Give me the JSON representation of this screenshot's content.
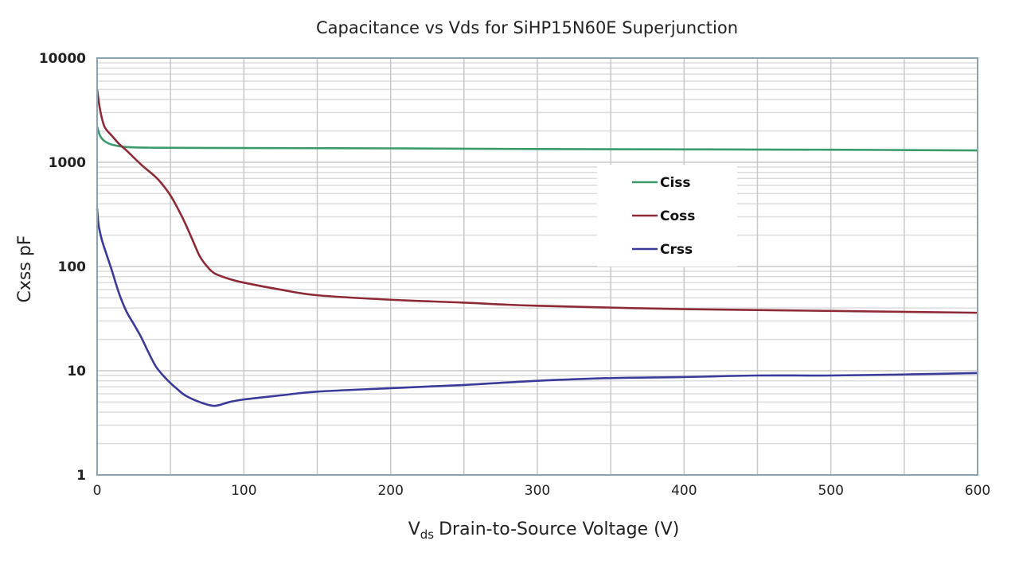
{
  "chart_data": {
    "type": "line",
    "title": "Capacitance vs Vds for SiHP15N60E Superjunction",
    "xlabel": "Drain-to-Source Voltage (V)",
    "xlabel_prefix": "V",
    "xlabel_subscript": "ds",
    "ylabel": "Cxss pF",
    "xlim": [
      0,
      600
    ],
    "ylim": [
      1,
      10000
    ],
    "yscale": "log",
    "grid": true,
    "legend_position": "center-right",
    "x_ticks": [
      "0",
      "100",
      "200",
      "300",
      "400",
      "500",
      "600"
    ],
    "y_ticks": [
      "1",
      "10",
      "100",
      "1000",
      "10000"
    ],
    "series": [
      {
        "name": "Ciss",
        "color": "#3a9a6a",
        "x": [
          0,
          2,
          5,
          10,
          20,
          40,
          100,
          200,
          300,
          400,
          500,
          600
        ],
        "y": [
          2200,
          1800,
          1600,
          1480,
          1400,
          1380,
          1370,
          1360,
          1340,
          1330,
          1320,
          1300
        ]
      },
      {
        "name": "Coss",
        "color": "#8e2a35",
        "x": [
          0,
          2,
          5,
          10,
          15,
          20,
          30,
          40,
          45,
          50,
          55,
          60,
          65,
          70,
          75,
          80,
          90,
          100,
          125,
          150,
          200,
          250,
          300,
          400,
          500,
          600
        ],
        "y": [
          5000,
          3200,
          2200,
          1800,
          1500,
          1300,
          950,
          720,
          600,
          480,
          360,
          260,
          180,
          125,
          100,
          86,
          76,
          70,
          60,
          53,
          48,
          45,
          42,
          39,
          37.5,
          36
        ]
      },
      {
        "name": "Crss",
        "color": "#3a3a9a",
        "x": [
          0,
          1,
          3,
          5,
          10,
          15,
          20,
          25,
          30,
          35,
          40,
          45,
          50,
          55,
          60,
          70,
          80,
          90,
          100,
          125,
          150,
          200,
          250,
          300,
          350,
          400,
          450,
          500,
          550,
          600
        ],
        "y": [
          360,
          250,
          185,
          150,
          92,
          55,
          37,
          28,
          21,
          15,
          11,
          9,
          7.6,
          6.6,
          5.8,
          5.0,
          4.6,
          5.0,
          5.3,
          5.8,
          6.3,
          6.8,
          7.3,
          8.0,
          8.5,
          8.7,
          9.0,
          9.0,
          9.2,
          9.5
        ]
      }
    ]
  }
}
